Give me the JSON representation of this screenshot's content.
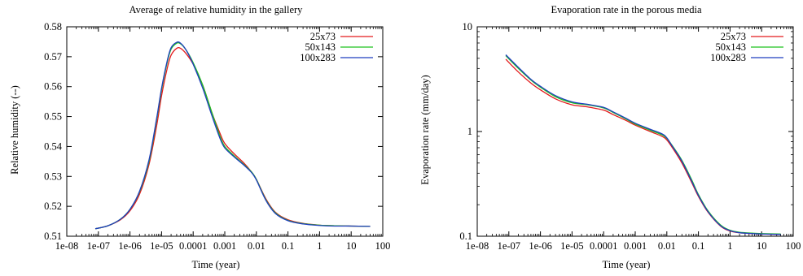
{
  "chart_data": [
    {
      "type": "line",
      "title": "Average of relative humidity in the gallery",
      "xlabel": "Time (year)",
      "ylabel": "Relative humidity (--)",
      "x_scale": "log",
      "y_scale": "linear",
      "xlim": [
        1e-08,
        100
      ],
      "ylim": [
        0.51,
        0.58
      ],
      "x_ticks": [
        "1e-08",
        "1e-07",
        "1e-06",
        "1e-05",
        "0.0001",
        "0.001",
        "0.01",
        "0.1",
        "1",
        "10",
        "100"
      ],
      "y_ticks": [
        "0.51",
        "0.52",
        "0.53",
        "0.54",
        "0.55",
        "0.56",
        "0.57",
        "0.58"
      ],
      "legend_position": "top-right",
      "grid": false,
      "series": [
        {
          "name": "25x73",
          "color": "#e31a1c",
          "x": [
            8e-08,
            2e-07,
            5e-07,
            1e-06,
            2e-06,
            4e-06,
            7e-06,
            1e-05,
            1.5e-05,
            2e-05,
            3e-05,
            4e-05,
            6e-05,
            0.0001,
            0.0002,
            0.0004,
            0.0007,
            0.001,
            0.002,
            0.004,
            0.007,
            0.01,
            0.02,
            0.04,
            0.1,
            0.3,
            1,
            3,
            10,
            40
          ],
          "y": [
            0.5125,
            0.5135,
            0.5155,
            0.5185,
            0.524,
            0.534,
            0.547,
            0.557,
            0.566,
            0.5705,
            0.5728,
            0.5728,
            0.571,
            0.5675,
            0.5605,
            0.551,
            0.5445,
            0.541,
            0.5375,
            0.5345,
            0.5315,
            0.529,
            0.5225,
            0.518,
            0.5155,
            0.5143,
            0.5137,
            0.5135,
            0.5134,
            0.5133
          ]
        },
        {
          "name": "50x143",
          "color": "#1fc21f",
          "x": [
            8e-08,
            2e-07,
            5e-07,
            1e-06,
            2e-06,
            4e-06,
            7e-06,
            1e-05,
            1.5e-05,
            2e-05,
            3e-05,
            4e-05,
            6e-05,
            0.0001,
            0.0002,
            0.0004,
            0.0007,
            0.001,
            0.002,
            0.004,
            0.007,
            0.01,
            0.02,
            0.04,
            0.1,
            0.3,
            1,
            3,
            10,
            40
          ],
          "y": [
            0.5125,
            0.5135,
            0.5157,
            0.519,
            0.5248,
            0.535,
            0.549,
            0.559,
            0.568,
            0.5725,
            0.5745,
            0.5743,
            0.5722,
            0.568,
            0.5605,
            0.551,
            0.5435,
            0.54,
            0.5368,
            0.534,
            0.5315,
            0.529,
            0.5222,
            0.5178,
            0.5153,
            0.5142,
            0.5137,
            0.5135,
            0.5134,
            0.5133
          ]
        },
        {
          "name": "100x283",
          "color": "#1f3fbf",
          "x": [
            8e-08,
            2e-07,
            5e-07,
            1e-06,
            2e-06,
            4e-06,
            7e-06,
            1e-05,
            1.5e-05,
            2e-05,
            3e-05,
            4e-05,
            6e-05,
            0.0001,
            0.0002,
            0.0004,
            0.0007,
            0.001,
            0.002,
            0.004,
            0.007,
            0.01,
            0.02,
            0.04,
            0.1,
            0.3,
            1,
            3,
            10,
            40
          ],
          "y": [
            0.5125,
            0.5135,
            0.5157,
            0.519,
            0.525,
            0.5355,
            0.5495,
            0.5595,
            0.5685,
            0.573,
            0.5748,
            0.5745,
            0.5722,
            0.5675,
            0.5595,
            0.55,
            0.5428,
            0.5395,
            0.5365,
            0.5338,
            0.5313,
            0.5288,
            0.522,
            0.5176,
            0.5152,
            0.5141,
            0.5136,
            0.5134,
            0.5134,
            0.5133
          ]
        }
      ]
    },
    {
      "type": "line",
      "title": "Evaporation rate in the porous media",
      "xlabel": "Time (year)",
      "ylabel": "Evaporation rate (mm/day)",
      "x_scale": "log",
      "y_scale": "log",
      "xlim": [
        1e-08,
        100
      ],
      "ylim": [
        0.1,
        10
      ],
      "x_ticks": [
        "1e-08",
        "1e-07",
        "1e-06",
        "1e-05",
        "0.0001",
        "0.001",
        "0.01",
        "0.1",
        "1",
        "10",
        "100"
      ],
      "y_ticks": [
        "0.1",
        "1",
        "10"
      ],
      "legend_position": "top-right",
      "grid": false,
      "series": [
        {
          "name": "25x73",
          "color": "#e31a1c",
          "x": [
            8e-08,
            2e-07,
            5e-07,
            1e-06,
            3e-06,
            1e-05,
            3e-05,
            0.0001,
            0.0002,
            0.0005,
            0.001,
            0.003,
            0.007,
            0.01,
            0.015,
            0.03,
            0.06,
            0.1,
            0.2,
            0.5,
            1,
            2,
            5,
            10,
            40
          ],
          "y": [
            4.9,
            3.7,
            2.9,
            2.5,
            2.05,
            1.8,
            1.72,
            1.6,
            1.45,
            1.28,
            1.15,
            1.0,
            0.9,
            0.83,
            0.7,
            0.5,
            0.33,
            0.24,
            0.17,
            0.125,
            0.112,
            0.108,
            0.106,
            0.105,
            0.104
          ]
        },
        {
          "name": "50x143",
          "color": "#1fc21f",
          "x": [
            8e-08,
            2e-07,
            5e-07,
            1e-06,
            3e-06,
            1e-05,
            3e-05,
            0.0001,
            0.0002,
            0.0005,
            0.001,
            0.003,
            0.007,
            0.01,
            0.015,
            0.03,
            0.06,
            0.1,
            0.2,
            0.5,
            1,
            2,
            5,
            10,
            40
          ],
          "y": [
            5.3,
            4.0,
            3.1,
            2.65,
            2.15,
            1.88,
            1.8,
            1.68,
            1.52,
            1.32,
            1.18,
            1.03,
            0.93,
            0.86,
            0.73,
            0.53,
            0.35,
            0.25,
            0.175,
            0.128,
            0.114,
            0.109,
            0.107,
            0.106,
            0.105
          ]
        },
        {
          "name": "100x283",
          "color": "#1f3fbf",
          "x": [
            8e-08,
            2e-07,
            5e-07,
            1e-06,
            3e-06,
            1e-05,
            3e-05,
            0.0001,
            0.0002,
            0.0005,
            0.001,
            0.003,
            0.007,
            0.01,
            0.015,
            0.03,
            0.06,
            0.1,
            0.2,
            0.5,
            1,
            2,
            5,
            10,
            40
          ],
          "y": [
            5.4,
            4.1,
            3.15,
            2.7,
            2.2,
            1.92,
            1.82,
            1.7,
            1.54,
            1.34,
            1.2,
            1.05,
            0.95,
            0.87,
            0.72,
            0.52,
            0.34,
            0.245,
            0.172,
            0.126,
            0.113,
            0.108,
            0.106,
            0.105,
            0.104
          ]
        }
      ]
    }
  ]
}
